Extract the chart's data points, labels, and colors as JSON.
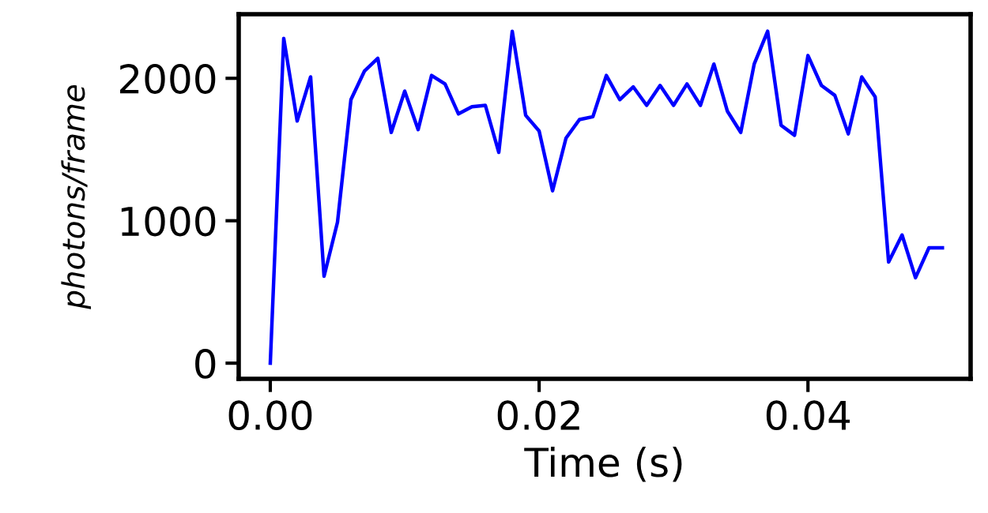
{
  "chart_data": {
    "type": "line",
    "xlabel": "Time (s)",
    "ylabel": "photons/frame",
    "x": [
      0,
      0.001,
      0.002,
      0.003,
      0.004,
      0.005,
      0.006,
      0.007,
      0.008,
      0.009,
      0.01,
      0.011,
      0.012,
      0.013,
      0.014,
      0.015,
      0.016,
      0.017,
      0.018,
      0.019,
      0.02,
      0.021,
      0.022,
      0.023,
      0.024,
      0.025,
      0.026,
      0.027,
      0.028,
      0.029,
      0.03,
      0.031,
      0.032,
      0.033,
      0.034,
      0.035,
      0.036,
      0.037,
      0.038,
      0.039,
      0.04,
      0.041,
      0.042,
      0.043,
      0.044,
      0.045,
      0.046,
      0.047,
      0.048,
      0.049,
      0.05
    ],
    "series": [
      {
        "color": "#0000ff",
        "values": [
          0,
          2280,
          1700,
          2010,
          610,
          990,
          1850,
          2050,
          2140,
          1620,
          1910,
          1640,
          2020,
          1960,
          1750,
          1800,
          1810,
          1480,
          2330,
          1740,
          1630,
          1210,
          1580,
          1710,
          1730,
          2020,
          1850,
          1940,
          1810,
          1950,
          1810,
          1960,
          1810,
          2100,
          1770,
          1620,
          2100,
          2330,
          1670,
          1600,
          2160,
          1950,
          1880,
          1610,
          2010,
          1870,
          710,
          900,
          600,
          810,
          810
        ]
      }
    ],
    "xlim": [
      -0.00235,
      0.0521
    ],
    "ylim": [
      -110,
      2450
    ],
    "xticks": [
      {
        "value": 0,
        "label": "0.00"
      },
      {
        "value": 0.02,
        "label": "0.02"
      },
      {
        "value": 0.04,
        "label": "0.04"
      }
    ],
    "yticks": [
      0,
      1000,
      2000
    ],
    "grid": false,
    "legend": false,
    "marker": "none",
    "line_style": "solid"
  }
}
